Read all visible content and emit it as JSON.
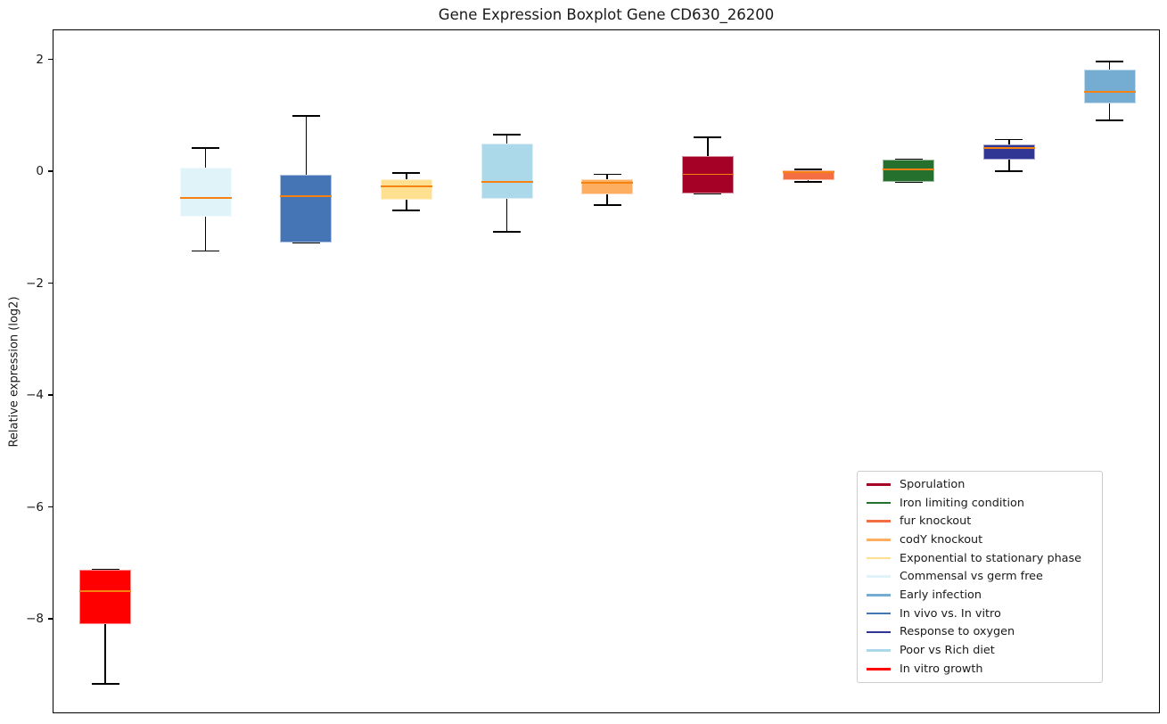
{
  "chart_data": {
    "type": "boxplot",
    "title": "Gene Expression Boxplot Gene CD630_26200",
    "ylabel": "Relative expression (log2)",
    "ylim": [
      -9.7,
      2.55
    ],
    "yticks": [
      2,
      0,
      -2,
      -4,
      -6,
      -8
    ],
    "ytick_labels": [
      "2",
      "0",
      "−2",
      "−4",
      "−6",
      "−8"
    ],
    "grid": false,
    "x_tick_labels_visible": false,
    "median_color": "#f78214",
    "whisker_color": "#000000",
    "legend_position": "lower right",
    "boxes": [
      {
        "name": "In vitro growth",
        "color": "#ff0000",
        "whisker_low": -9.15,
        "q1": -8.08,
        "median": -7.49,
        "q3": -7.1,
        "whisker_high": -7.1
      },
      {
        "name": "Commensal vs germ free",
        "color": "#e0f3f8",
        "whisker_low": -1.41,
        "q1": -0.8,
        "median": -0.46,
        "q3": 0.08,
        "whisker_high": 0.43
      },
      {
        "name": "In vivo vs. In vitro",
        "color": "#4575b4",
        "whisker_low": -1.26,
        "q1": -1.26,
        "median": -0.43,
        "q3": -0.04,
        "whisker_high": 1.0
      },
      {
        "name": "Exponential to stationary phase",
        "color": "#fee090",
        "whisker_low": -0.69,
        "q1": -0.49,
        "median": -0.25,
        "q3": -0.13,
        "whisker_high": -0.01
      },
      {
        "name": "Poor vs Rich diet",
        "color": "#abd9e9",
        "whisker_low": -1.07,
        "q1": -0.48,
        "median": -0.18,
        "q3": 0.51,
        "whisker_high": 0.67
      },
      {
        "name": "codY knockout",
        "color": "#fdae61",
        "whisker_low": -0.59,
        "q1": -0.4,
        "median": -0.19,
        "q3": -0.13,
        "whisker_high": -0.04
      },
      {
        "name": "Sporulation",
        "color": "#a50026",
        "whisker_low": -0.38,
        "q1": -0.38,
        "median": -0.04,
        "q3": 0.29,
        "whisker_high": 0.62
      },
      {
        "name": "fur knockout",
        "color": "#f46d43",
        "whisker_low": -0.17,
        "q1": -0.14,
        "median": 0.0,
        "q3": 0.03,
        "whisker_high": 0.05
      },
      {
        "name": "Iron limiting condition",
        "color": "#26702e",
        "whisker_low": -0.18,
        "q1": -0.18,
        "median": 0.05,
        "q3": 0.23,
        "whisker_high": 0.23
      },
      {
        "name": "Response to oxygen",
        "color": "#313695",
        "whisker_low": 0.02,
        "q1": 0.22,
        "median": 0.43,
        "q3": 0.5,
        "whisker_high": 0.58
      },
      {
        "name": "Early infection",
        "color": "#74add1",
        "whisker_low": 0.92,
        "q1": 1.22,
        "median": 1.44,
        "q3": 1.84,
        "whisker_high": 1.98
      }
    ],
    "legend": [
      {
        "label": "Sporulation",
        "color": "#a50026"
      },
      {
        "label": "Iron limiting condition",
        "color": "#26702e"
      },
      {
        "label": "fur knockout",
        "color": "#f46d43"
      },
      {
        "label": "codY knockout",
        "color": "#fdae61"
      },
      {
        "label": "Exponential to stationary phase",
        "color": "#fee090"
      },
      {
        "label": "Commensal vs germ free",
        "color": "#e0f3f8"
      },
      {
        "label": "Early infection",
        "color": "#74add1"
      },
      {
        "label": "In vivo vs. In vitro",
        "color": "#4575b4"
      },
      {
        "label": "Response to oxygen",
        "color": "#313695"
      },
      {
        "label": "Poor vs Rich diet",
        "color": "#abd9e9"
      },
      {
        "label": "In vitro growth",
        "color": "#ff0000"
      }
    ]
  }
}
